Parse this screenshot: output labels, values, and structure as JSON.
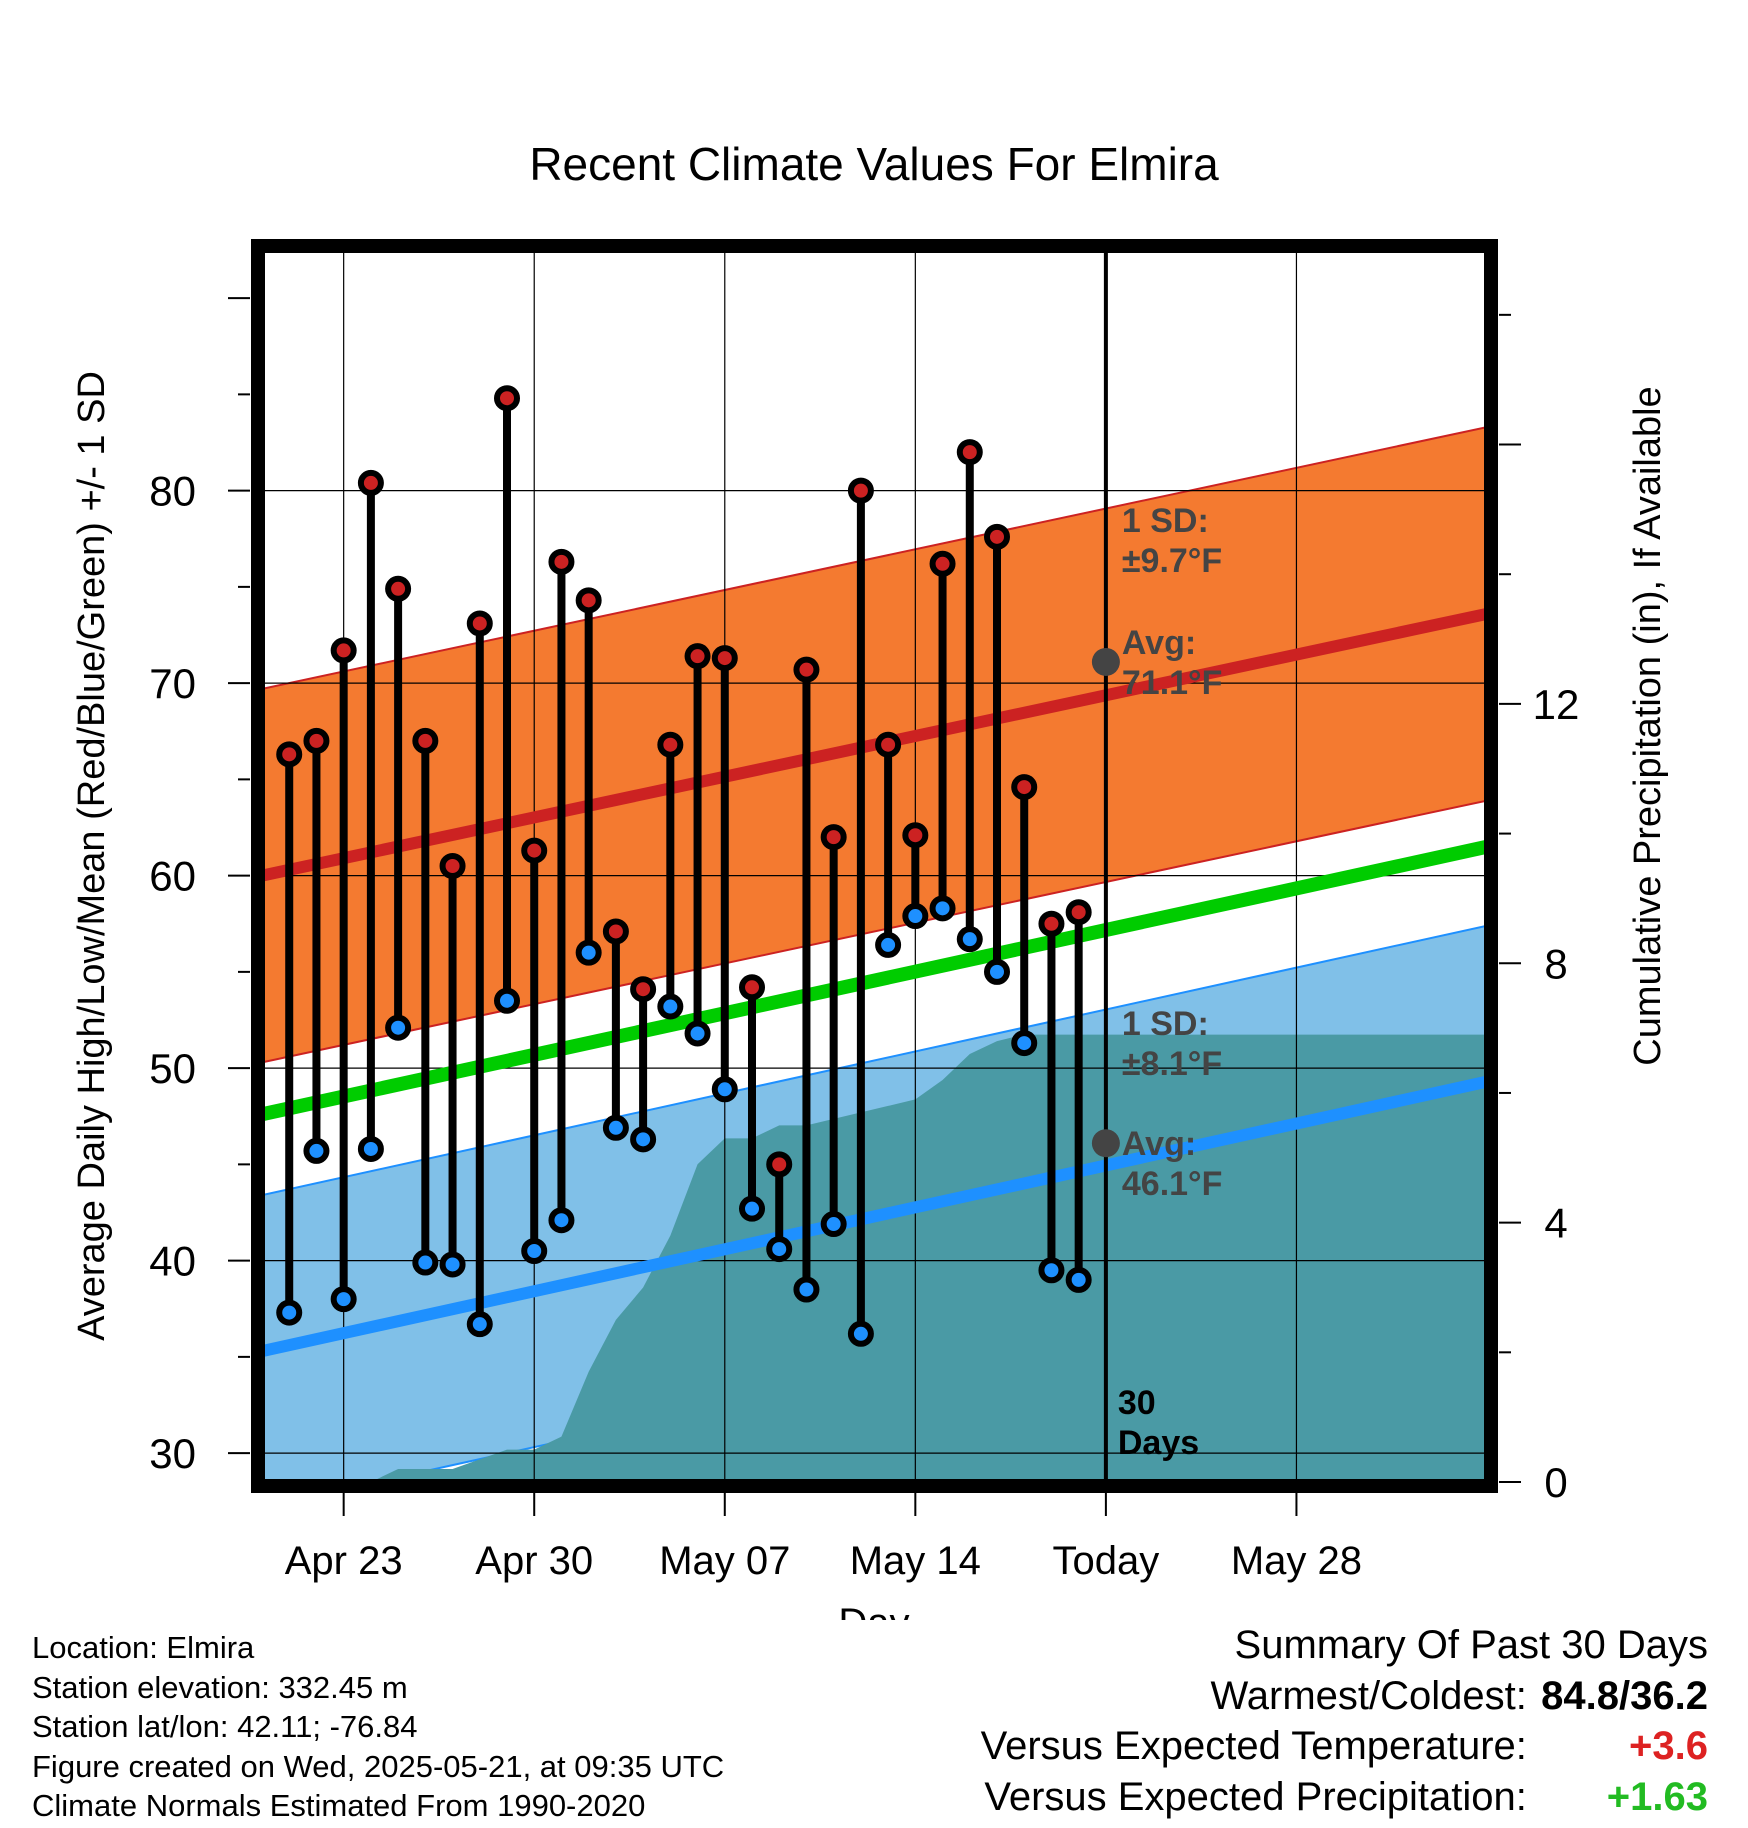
{
  "chart_data": {
    "type": "line",
    "title": "Recent Climate Values For Elmira",
    "xlabel": "Day",
    "ylabel": "Average Daily High/Low/Mean (Red/Blue/Green) +/- 1 SD",
    "y2label": "Cumulative Precipitation (in), If Available",
    "x_range_days_from_today": [
      -31,
      14
    ],
    "ylim": [
      28.5,
      92.5
    ],
    "y2lim": [
      0,
      19
    ],
    "yticks": [
      30,
      40,
      50,
      60,
      70,
      80
    ],
    "y2ticks": [
      0,
      4,
      8,
      12
    ],
    "xticks": [
      {
        "day": -28,
        "label": "Apr 23"
      },
      {
        "day": -21,
        "label": "Apr 30"
      },
      {
        "day": -14,
        "label": "May 07"
      },
      {
        "day": -7,
        "label": "May 14"
      },
      {
        "day": 0,
        "label": "Today"
      },
      {
        "day": 7,
        "label": "May 28"
      }
    ],
    "grid": true,
    "colors": {
      "high": "#cc2222",
      "low": "#1e90ff",
      "mean": "#00cc00",
      "high_band": "#f47a30",
      "low_band": "#80c0e8",
      "precip": "#4a9aa5",
      "today_marker": "#444444",
      "annotation_text": "#444444"
    },
    "normals": {
      "high_start": 60.0,
      "high_end": 73.6,
      "low_start": 35.3,
      "low_end": 49.3,
      "mean_start": 47.6,
      "mean_end": 61.5,
      "high_sd": 9.7,
      "low_sd": 8.1
    },
    "daily": {
      "day": [
        -30,
        -29,
        -28,
        -27,
        -26,
        -25,
        -24,
        -23,
        -22,
        -21,
        -20,
        -19,
        -18,
        -17,
        -16,
        -15,
        -14,
        -13,
        -12,
        -11,
        -10,
        -9,
        -8,
        -7,
        -6,
        -5,
        -4,
        -3,
        -2,
        -1
      ],
      "high": [
        66.3,
        67.0,
        71.7,
        80.4,
        74.9,
        67.0,
        60.5,
        73.1,
        84.8,
        61.3,
        76.3,
        74.3,
        57.1,
        54.1,
        66.8,
        71.4,
        71.3,
        54.2,
        45.0,
        70.7,
        62.0,
        80.0,
        66.8,
        62.1,
        76.2,
        82.0,
        77.6,
        64.6,
        57.5,
        58.1
      ],
      "low": [
        37.3,
        45.7,
        38.0,
        45.8,
        52.1,
        39.9,
        39.8,
        36.7,
        53.5,
        40.5,
        42.1,
        56.0,
        46.9,
        46.3,
        53.2,
        51.8,
        48.9,
        42.7,
        40.6,
        38.5,
        41.9,
        36.2,
        56.4,
        57.9,
        58.3,
        56.7,
        55.0,
        51.3,
        39.5,
        39.0
      ]
    },
    "precip_cumulative": {
      "day": [
        -31,
        -27,
        -26,
        -25,
        -24,
        -22,
        -21,
        -20,
        -19,
        -18,
        -17,
        -16,
        -15,
        -14,
        -13,
        -12,
        -11,
        -10,
        -9,
        -8,
        -7,
        -6,
        -5,
        -4,
        -3,
        -2,
        -1,
        0,
        14
      ],
      "value": [
        0.0,
        0.0,
        0.2,
        0.2,
        0.2,
        0.5,
        0.5,
        0.7,
        1.7,
        2.5,
        3.0,
        3.8,
        4.9,
        5.3,
        5.3,
        5.5,
        5.5,
        5.6,
        5.7,
        5.8,
        5.9,
        6.2,
        6.6,
        6.8,
        6.9,
        6.9,
        6.9,
        6.9,
        6.9
      ]
    },
    "annotations": {
      "high_sd_line1": "1 SD:",
      "high_sd_line2": "±9.7°F",
      "high_avg_line1": "Avg:",
      "high_avg_line2": "71.1°F",
      "low_sd_line1": "1 SD:",
      "low_sd_line2": "±8.1°F",
      "low_avg_line1": "Avg:",
      "low_avg_line2": "46.1°F",
      "days_line1": "30",
      "days_line2": "Days"
    },
    "today_high_avg": 71.1,
    "today_low_avg": 46.1
  },
  "meta": {
    "location": "Location: Elmira",
    "elevation": "Station elevation: 332.45 m",
    "latlon": "Station lat/lon: 42.11; -76.84",
    "created": "Figure created on Wed, 2025-05-21, at 09:35 UTC",
    "normals": "Climate Normals Estimated From 1990-2020"
  },
  "summary": {
    "title": "Summary Of Past 30 Days",
    "warm_cold_label": "Warmest/Coldest:",
    "warm_cold_value": "84.8/36.2",
    "temp_label": "Versus Expected Temperature:",
    "temp_value": "+3.6",
    "precip_label": "Versus Expected Precipitation:",
    "precip_value": "+1.63"
  }
}
